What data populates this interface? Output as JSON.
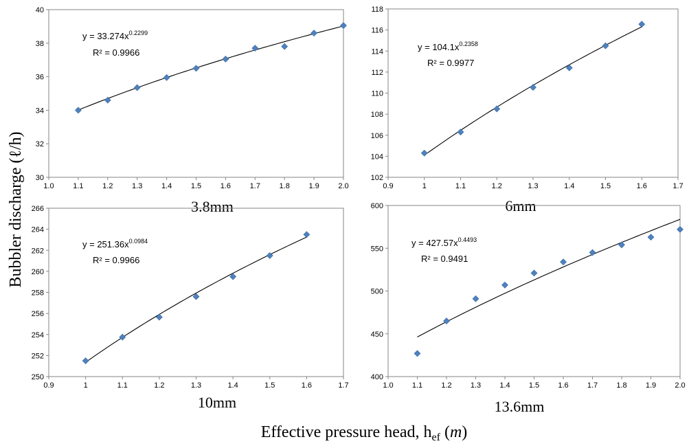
{
  "figure": {
    "ylabel": "Bubbler discharge (ℓ/h)",
    "xlabel": {
      "main": "Effective pressure head, h",
      "sub": "ef",
      "unit": "m"
    },
    "marker_color": "#4F81BD"
  },
  "chart_data": [
    {
      "type": "scatter",
      "caption": "3.8mm",
      "x": [
        1.1,
        1.2,
        1.3,
        1.4,
        1.5,
        1.6,
        1.7,
        1.8,
        1.9,
        2.0
      ],
      "y": [
        34.0,
        34.6,
        35.35,
        35.95,
        36.5,
        37.05,
        37.7,
        37.8,
        38.6,
        39.05
      ],
      "xlim": [
        1.0,
        2.0
      ],
      "ylim": [
        30,
        40
      ],
      "xticks": [
        "1.0",
        "1.1",
        "1.2",
        "1.3",
        "1.4",
        "1.5",
        "1.6",
        "1.7",
        "1.8",
        "1.9",
        "2.0"
      ],
      "yticks": [
        "30",
        "32",
        "34",
        "36",
        "38",
        "40"
      ],
      "trendline": {
        "type": "power",
        "a": 33.274,
        "b": 0.2299
      },
      "equation": {
        "lhs": "y = 33.274x",
        "exp": "0.2299",
        "r2": "R² = 0.9966"
      },
      "grid": false
    },
    {
      "type": "scatter",
      "caption": "6mm",
      "x": [
        1.0,
        1.1,
        1.2,
        1.3,
        1.4,
        1.5,
        1.6
      ],
      "y": [
        104.3,
        106.3,
        108.5,
        110.55,
        112.4,
        114.5,
        116.55
      ],
      "xlim": [
        0.9,
        1.7
      ],
      "ylim": [
        102,
        118
      ],
      "xticks": [
        "0.9",
        "1",
        "1.1",
        "1.2",
        "1.3",
        "1.4",
        "1.5",
        "1.6",
        "1.7"
      ],
      "yticks": [
        "102",
        "104",
        "106",
        "108",
        "110",
        "112",
        "114",
        "116",
        "118"
      ],
      "trendline": {
        "type": "power",
        "a": 104.1,
        "b": 0.2358
      },
      "equation": {
        "lhs": "y = 104.1x",
        "exp": "0.2358",
        "r2": "R² = 0.9977"
      },
      "grid": false
    },
    {
      "type": "scatter",
      "caption": "10mm",
      "x": [
        1.0,
        1.1,
        1.2,
        1.3,
        1.4,
        1.5,
        1.6
      ],
      "y": [
        251.5,
        253.75,
        255.65,
        257.6,
        259.5,
        261.5,
        263.5
      ],
      "xlim": [
        0.9,
        1.7
      ],
      "ylim": [
        250,
        266
      ],
      "xticks": [
        "0.9",
        "1",
        "1.1",
        "1.2",
        "1.3",
        "1.4",
        "1.5",
        "1.6",
        "1.7"
      ],
      "yticks": [
        "250",
        "252",
        "254",
        "256",
        "258",
        "260",
        "262",
        "264",
        "266"
      ],
      "trendline": {
        "type": "power",
        "a": 251.36,
        "b": 0.0984
      },
      "equation": {
        "lhs": "y = 251.36x",
        "exp": "0.0984",
        "r2": "R² = 0.9966"
      },
      "grid": false
    },
    {
      "type": "scatter",
      "caption": "13.6mm",
      "x": [
        1.1,
        1.2,
        1.3,
        1.4,
        1.5,
        1.6,
        1.7,
        1.8,
        1.9,
        2.0
      ],
      "y": [
        427,
        465,
        491,
        507,
        521,
        534,
        545,
        554,
        563,
        572
      ],
      "xlim": [
        1.0,
        2.0
      ],
      "ylim": [
        400,
        600
      ],
      "xticks": [
        "1.0",
        "1.1",
        "1.2",
        "1.3",
        "1.4",
        "1.5",
        "1.6",
        "1.7",
        "1.8",
        "1.9",
        "2.0"
      ],
      "yticks": [
        "400",
        "450",
        "500",
        "550",
        "600"
      ],
      "trendline": {
        "type": "power",
        "a": 427.57,
        "b": 0.4493
      },
      "equation": {
        "lhs": "y = 427.57x",
        "exp": "0.4493",
        "r2": "R² = 0.9491"
      },
      "grid": false
    }
  ]
}
